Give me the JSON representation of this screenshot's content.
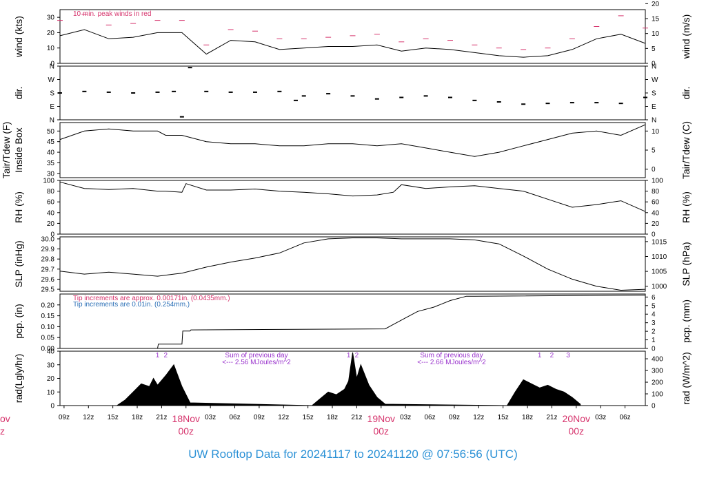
{
  "colors": {
    "title": "#2b91d6",
    "day_label": "#d6336c",
    "peak": "#d6336c",
    "precip": "#2b6fb6",
    "rad_annot": "#9932cc",
    "series": "#000000"
  },
  "footer": {
    "title": "UW Rooftop Data for 20241117  to  20241120 @ 07:56:56  (UTC)"
  },
  "x_axis": {
    "tick_labels": [
      "09z",
      "12z",
      "15z",
      "18z",
      "21z",
      "03z",
      "06z",
      "09z",
      "12z",
      "15z",
      "18z",
      "21z",
      "03z",
      "06z",
      "09z",
      "12z",
      "15z",
      "18z",
      "21z",
      "03z",
      "06z"
    ],
    "day_labels": [
      {
        "top": "18Nov",
        "bottom": "00z"
      },
      {
        "top": "19Nov",
        "bottom": "00z"
      },
      {
        "top": "20Nov",
        "bottom": "00z"
      }
    ],
    "partial_left": {
      "top": "ov",
      "bottom": "z"
    }
  },
  "chart_data": [
    {
      "id": "wind",
      "type": "line",
      "ylabel_left": "wind (kts)",
      "ylabel_right": "wind (m/s)",
      "ylim": [
        0,
        35
      ],
      "left_ticks": [
        "0",
        "10",
        "20",
        "30"
      ],
      "right_ticks": [
        "0",
        "5",
        "10",
        "15",
        "20"
      ],
      "annotation": "10 min. peak winds in red",
      "series": [
        {
          "name": "wind",
          "x_hours": [
            0,
            3,
            6,
            9,
            12,
            15,
            18,
            21,
            24,
            27,
            30,
            33,
            36,
            39,
            42,
            45,
            48,
            51,
            54,
            57,
            60,
            63,
            66,
            69,
            72
          ],
          "values": [
            18,
            22,
            16,
            17,
            20,
            20,
            6,
            15,
            14,
            9,
            10,
            11,
            11,
            12,
            8,
            10,
            9,
            7,
            5,
            4,
            5,
            9,
            16,
            19,
            13
          ]
        },
        {
          "name": "10 min. peak",
          "x_hours": [
            0,
            3,
            6,
            9,
            12,
            15,
            18,
            21,
            24,
            27,
            30,
            33,
            36,
            39,
            42,
            45,
            48,
            51,
            54,
            57,
            60,
            63,
            66,
            69,
            72
          ],
          "values": [
            28,
            32,
            25,
            26,
            28,
            28,
            12,
            22,
            21,
            16,
            16,
            17,
            18,
            19,
            14,
            16,
            15,
            12,
            10,
            9,
            10,
            16,
            24,
            31,
            23
          ]
        }
      ]
    },
    {
      "id": "dir",
      "type": "scatter",
      "ylabel_left": "dir.",
      "ylabel_right": "dir.",
      "ylim": [
        0,
        360
      ],
      "left_ticks": [
        "N",
        "E",
        "S",
        "W",
        "N"
      ],
      "right_ticks": [
        "N",
        "E",
        "S",
        "W",
        "N"
      ],
      "series": [
        {
          "name": "direction",
          "x_hours": [
            0,
            3,
            6,
            9,
            12,
            14,
            15,
            16,
            18,
            21,
            24,
            27,
            29,
            30,
            33,
            36,
            39,
            42,
            45,
            48,
            51,
            54,
            57,
            60,
            63,
            66,
            69,
            72
          ],
          "values": [
            180,
            190,
            185,
            180,
            185,
            190,
            20,
            350,
            190,
            185,
            185,
            190,
            130,
            160,
            175,
            160,
            140,
            150,
            160,
            150,
            130,
            120,
            105,
            110,
            115,
            115,
            110,
            150
          ]
        }
      ]
    },
    {
      "id": "temp",
      "type": "line",
      "ylabel_left": "Tair/Tdew (F)",
      "ylabel_left2": "Inside Box",
      "ylabel_right": "Tair/Tdew (C)",
      "ylim": [
        28,
        54
      ],
      "left_ticks": [
        "30",
        "35",
        "40",
        "45",
        "50"
      ],
      "right_ticks": [
        "0",
        "5",
        "10"
      ],
      "series": [
        {
          "name": "Tair",
          "x_hours": [
            0,
            3,
            6,
            9,
            12,
            13,
            15,
            18,
            21,
            24,
            27,
            30,
            33,
            36,
            39,
            42,
            45,
            48,
            51,
            54,
            57,
            60,
            63,
            66,
            69,
            72
          ],
          "values": [
            46,
            50,
            51,
            50,
            50,
            48,
            48,
            45,
            44,
            44,
            43,
            43,
            44,
            44,
            43,
            44,
            42,
            40,
            38,
            40,
            43,
            46,
            49,
            50,
            48,
            53
          ]
        }
      ]
    },
    {
      "id": "rh",
      "type": "line",
      "ylabel_left": "RH (%)",
      "ylabel_right": "RH (%)",
      "ylim": [
        0,
        100
      ],
      "left_ticks": [
        "0",
        "20",
        "40",
        "60",
        "80",
        "100"
      ],
      "right_ticks": [
        "0",
        "20",
        "40",
        "60",
        "80",
        "100"
      ],
      "series": [
        {
          "name": "RH",
          "x_hours": [
            0,
            3,
            6,
            9,
            12,
            13,
            15,
            15.5,
            18,
            21,
            24,
            27,
            30,
            33,
            36,
            39,
            41,
            42,
            45,
            48,
            51,
            54,
            57,
            60,
            63,
            66,
            69,
            72
          ],
          "values": [
            97,
            85,
            83,
            85,
            80,
            80,
            78,
            94,
            82,
            82,
            84,
            80,
            78,
            75,
            71,
            73,
            78,
            92,
            85,
            88,
            90,
            85,
            80,
            65,
            50,
            55,
            62,
            42
          ]
        }
      ]
    },
    {
      "id": "slp",
      "type": "line",
      "ylabel_left": "SLP (inHg)",
      "ylabel_right": "SLP (hPa)",
      "ylim": [
        29.48,
        30.02
      ],
      "left_ticks": [
        "29.5",
        "29.6",
        "29.7",
        "29.8",
        "29.9",
        "30.0"
      ],
      "right_ticks": [
        "1000",
        "1005",
        "1010",
        "1015"
      ],
      "series": [
        {
          "name": "SLP",
          "x_hours": [
            0,
            3,
            6,
            9,
            12,
            15,
            18,
            21,
            24,
            27,
            30,
            33,
            36,
            39,
            42,
            45,
            48,
            51,
            54,
            57,
            60,
            63,
            66,
            69,
            72
          ],
          "values": [
            29.68,
            29.65,
            29.67,
            29.65,
            29.63,
            29.66,
            29.72,
            29.77,
            29.81,
            29.86,
            29.96,
            30.0,
            30.01,
            30.01,
            30.0,
            30.0,
            30.0,
            29.99,
            29.95,
            29.83,
            29.7,
            29.6,
            29.53,
            29.49,
            29.5
          ]
        }
      ]
    },
    {
      "id": "pcp",
      "type": "line",
      "ylabel_left": "pcp. (in)",
      "ylabel_right": "pcp. (mm)",
      "ylim": [
        0,
        0.25
      ],
      "left_ticks": [
        "0.00",
        "0.05",
        "0.10",
        "0.15",
        "0.20"
      ],
      "right_ticks": [
        "0",
        "1",
        "2",
        "3",
        "4",
        "5",
        "6"
      ],
      "notes": [
        "Tip increments are approx. 0.00171in. (0.0435mm.)",
        "Tip increments are 0.01in. (0.254mm.)"
      ],
      "series": [
        {
          "name": "precip",
          "x_hours": [
            0,
            12,
            12.1,
            15,
            15.1,
            16,
            16.1,
            40,
            41,
            43,
            44,
            46,
            48,
            50,
            51,
            72
          ],
          "values": [
            0,
            0,
            0.02,
            0.02,
            0.08,
            0.08,
            0.085,
            0.09,
            0.11,
            0.15,
            0.17,
            0.19,
            0.22,
            0.24,
            0.24,
            0.245
          ]
        }
      ]
    },
    {
      "id": "rad",
      "type": "area",
      "ylabel_left": "rad(Lgly/hr)",
      "ylabel_right": "rad (W/m^2)",
      "ylim": [
        0,
        40
      ],
      "left_ticks": [
        "0",
        "10",
        "20",
        "30",
        "40"
      ],
      "right_ticks": [
        "0",
        "100",
        "200",
        "300",
        "400"
      ],
      "hour_marks": [
        "1",
        "2",
        "1",
        "2",
        "1",
        "2",
        "3"
      ],
      "notes": [
        "Sum of previous day",
        "<--- 2.56 MJoules/m^2",
        "Sum of previous day",
        "<--- 2.66 MJoules/m^2"
      ],
      "series": [
        {
          "name": "radiation",
          "x_hours": [
            7,
            8,
            9,
            10,
            11,
            11.5,
            12,
            13,
            14,
            15,
            16,
            31,
            32,
            33,
            34,
            35,
            35.5,
            36,
            36.5,
            37,
            38,
            39,
            40,
            55,
            56,
            57,
            58,
            59,
            60,
            61,
            62,
            63,
            64
          ],
          "values": [
            0,
            4,
            10,
            16,
            14,
            20,
            15,
            22,
            30,
            14,
            2,
            0,
            5,
            10,
            8,
            12,
            18,
            39,
            20,
            30,
            15,
            6,
            1,
            0,
            10,
            19,
            16,
            13,
            15,
            12,
            10,
            6,
            1
          ]
        }
      ]
    }
  ]
}
